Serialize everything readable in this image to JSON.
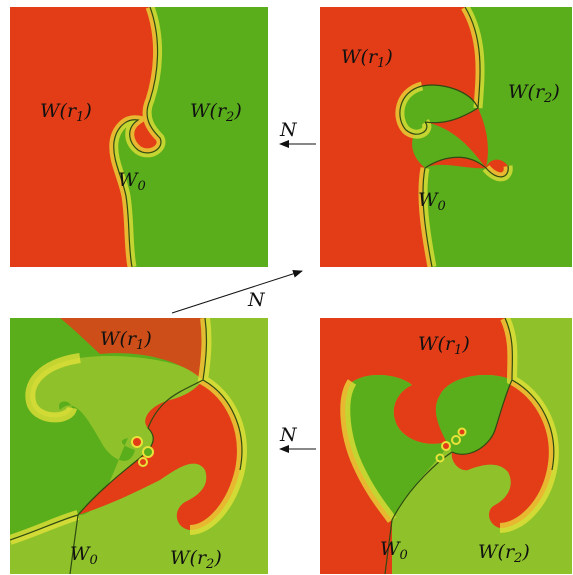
{
  "colors": {
    "red": "#e23d17",
    "green": "#5aae1c",
    "yellow": "#e8e23a",
    "edge": "#2f4a12",
    "text": "#111111"
  },
  "panels": [
    {
      "id": "top-left",
      "label_w1": "W(r",
      "label_w1_sub": "1",
      "label_w2": "W(r",
      "label_w2_sub": "2",
      "label_w0": "W",
      "label_w0_sub": "0"
    },
    {
      "id": "top-right",
      "label_w1": "W(r",
      "label_w1_sub": "1",
      "label_w2": "W(r",
      "label_w2_sub": "2",
      "label_w0": "W",
      "label_w0_sub": "0"
    },
    {
      "id": "bottom-left",
      "label_w1": "W(r",
      "label_w1_sub": "1",
      "label_w2": "W(r",
      "label_w2_sub": "2",
      "label_w0": "W",
      "label_w0_sub": "0"
    },
    {
      "id": "bottom-right",
      "label_w1": "W(r",
      "label_w1_sub": "1",
      "label_w2": "W(r",
      "label_w2_sub": "2",
      "label_w0": "W",
      "label_w0_sub": "0"
    }
  ],
  "arrows": [
    {
      "id": "arrow-top",
      "label": "N"
    },
    {
      "id": "arrow-diagonal",
      "label": "N"
    },
    {
      "id": "arrow-bottom",
      "label": "N"
    }
  ],
  "close_paren": ")"
}
